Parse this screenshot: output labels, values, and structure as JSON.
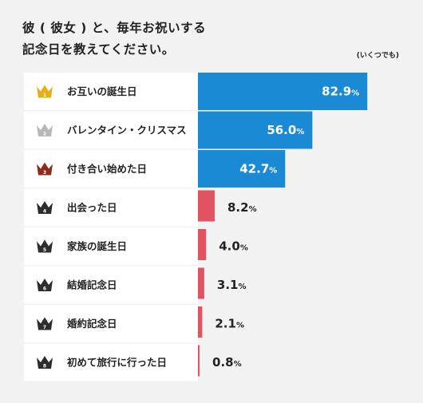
{
  "title_line1": "彼 ( 彼女 ) と、毎年お祝いする",
  "title_line2": "記念日を教えてください。",
  "note": "(いくつでも)",
  "colors": {
    "blue": "#1a8ad4",
    "red": "#e05360",
    "gold": "#e6b012",
    "silver": "#b8b8b8",
    "bronze": "#8b2c1a",
    "dark": "#2d2d2d"
  },
  "chart_data": {
    "type": "bar",
    "orientation": "horizontal",
    "unit": "%",
    "xlim": [
      0,
      100
    ],
    "grid": false,
    "categories": [
      "お互いの誕生日",
      "バレンタイン・クリスマス",
      "付き合い始めた日",
      "出会った日",
      "家族の誕生日",
      "結婚記念日",
      "婚約記念日",
      "初めて旅行に行った日"
    ],
    "ranks": [
      "1",
      "2",
      "3",
      "4",
      "5",
      "6",
      "7",
      "8"
    ],
    "values": [
      82.9,
      56.0,
      42.7,
      8.2,
      4.0,
      3.1,
      2.1,
      0.8
    ],
    "value_labels": [
      "82.9",
      "56.0",
      "42.7",
      "8.2",
      "4.0",
      "3.1",
      "2.1",
      "0.8"
    ],
    "rank_icons": [
      "crown-gold-icon",
      "crown-silver-icon",
      "crown-bronze-icon",
      "crown-dark-icon",
      "crown-dark-icon",
      "crown-dark-icon",
      "crown-dark-icon",
      "crown-dark-icon"
    ]
  }
}
